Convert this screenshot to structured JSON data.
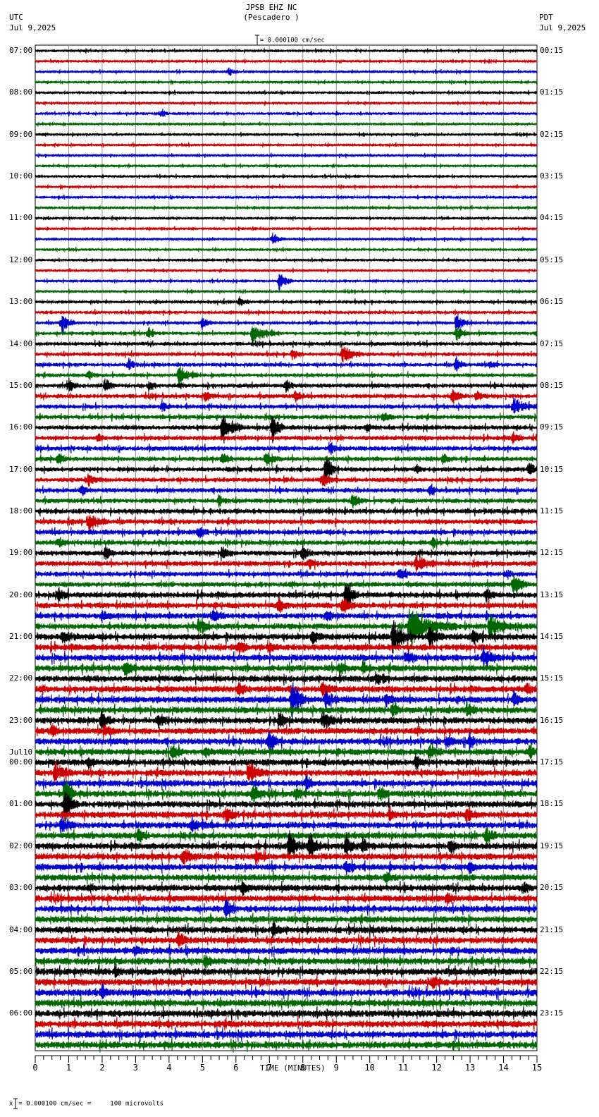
{
  "header": {
    "station": "JPSB EHZ NC",
    "location": "(Pescadero )",
    "scale_text": "= 0.000100 cm/sec",
    "left_tz": "UTC",
    "left_date": "Jul 9,2025",
    "right_tz": "PDT",
    "right_date": "Jul 9,2025"
  },
  "footer": {
    "scale_text": "= 0.000100 cm/sec =     100 microvolts",
    "scale_prefix": "x"
  },
  "chart_data": {
    "type": "line",
    "title": "JPSB EHZ NC (Pescadero )",
    "xlabel": "TIME (MINUTES)",
    "ylabel": "",
    "x_ticks": [
      "0",
      "1",
      "2",
      "3",
      "4",
      "5",
      "6",
      "7",
      "8",
      "9",
      "10",
      "11",
      "12",
      "13",
      "14",
      "15"
    ],
    "xlim": [
      0,
      15
    ],
    "grid": true,
    "traces_per_hour": 4,
    "trace_colors": [
      "#000000",
      "#cc0000",
      "#0000cc",
      "#006600"
    ],
    "left_labels": [
      {
        "row": 0,
        "text": "07:00"
      },
      {
        "row": 4,
        "text": "08:00"
      },
      {
        "row": 8,
        "text": "09:00"
      },
      {
        "row": 12,
        "text": "10:00"
      },
      {
        "row": 16,
        "text": "11:00"
      },
      {
        "row": 20,
        "text": "12:00"
      },
      {
        "row": 24,
        "text": "13:00"
      },
      {
        "row": 28,
        "text": "14:00"
      },
      {
        "row": 32,
        "text": "15:00"
      },
      {
        "row": 36,
        "text": "16:00"
      },
      {
        "row": 40,
        "text": "17:00"
      },
      {
        "row": 44,
        "text": "18:00"
      },
      {
        "row": 48,
        "text": "19:00"
      },
      {
        "row": 52,
        "text": "20:00"
      },
      {
        "row": 56,
        "text": "21:00"
      },
      {
        "row": 60,
        "text": "22:00"
      },
      {
        "row": 64,
        "text": "23:00"
      },
      {
        "row": 68,
        "text": "00:00",
        "date": "Jul10"
      },
      {
        "row": 72,
        "text": "01:00"
      },
      {
        "row": 76,
        "text": "02:00"
      },
      {
        "row": 80,
        "text": "03:00"
      },
      {
        "row": 84,
        "text": "04:00"
      },
      {
        "row": 88,
        "text": "05:00"
      },
      {
        "row": 92,
        "text": "06:00"
      }
    ],
    "right_labels": [
      {
        "row": 0,
        "text": "00:15"
      },
      {
        "row": 4,
        "text": "01:15"
      },
      {
        "row": 8,
        "text": "02:15"
      },
      {
        "row": 12,
        "text": "03:15"
      },
      {
        "row": 16,
        "text": "04:15"
      },
      {
        "row": 20,
        "text": "05:15"
      },
      {
        "row": 24,
        "text": "06:15"
      },
      {
        "row": 28,
        "text": "07:15"
      },
      {
        "row": 32,
        "text": "08:15"
      },
      {
        "row": 36,
        "text": "09:15"
      },
      {
        "row": 40,
        "text": "10:15"
      },
      {
        "row": 44,
        "text": "11:15"
      },
      {
        "row": 48,
        "text": "12:15"
      },
      {
        "row": 52,
        "text": "13:15"
      },
      {
        "row": 56,
        "text": "14:15"
      },
      {
        "row": 60,
        "text": "15:15"
      },
      {
        "row": 64,
        "text": "16:15"
      },
      {
        "row": 68,
        "text": "17:15"
      },
      {
        "row": 72,
        "text": "18:15"
      },
      {
        "row": 76,
        "text": "19:15"
      },
      {
        "row": 80,
        "text": "20:15"
      },
      {
        "row": 84,
        "text": "21:15"
      },
      {
        "row": 88,
        "text": "22:15"
      },
      {
        "row": 92,
        "text": "23:15"
      }
    ],
    "noise_level_by_hour": [
      1,
      1,
      1,
      1,
      1,
      1,
      1.3,
      1.5,
      1.7,
      1.8,
      1.8,
      2,
      2,
      2.3,
      2.6,
      2.6,
      2.6,
      2.6,
      2.6,
      2.6,
      2.6,
      2.7,
      2.8,
      2.8
    ],
    "events": [
      {
        "row": 2,
        "min": 5.8,
        "amp": 6,
        "dur": 0.3
      },
      {
        "row": 6,
        "min": 3.8,
        "amp": 6,
        "dur": 0.2
      },
      {
        "row": 18,
        "min": 7.1,
        "amp": 8,
        "dur": 0.4
      },
      {
        "row": 22,
        "min": 7.3,
        "amp": 14,
        "dur": 0.4
      },
      {
        "row": 24,
        "min": 6.1,
        "amp": 6,
        "dur": 0.3
      },
      {
        "row": 26,
        "min": 0.8,
        "amp": 12,
        "dur": 0.4
      },
      {
        "row": 26,
        "min": 5.0,
        "amp": 8,
        "dur": 0.3
      },
      {
        "row": 26,
        "min": 12.6,
        "amp": 14,
        "dur": 0.4
      },
      {
        "row": 27,
        "min": 3.4,
        "amp": 8,
        "dur": 0.3
      },
      {
        "row": 27,
        "min": 6.5,
        "amp": 14,
        "dur": 0.8
      },
      {
        "row": 27,
        "min": 12.6,
        "amp": 10,
        "dur": 0.4
      },
      {
        "row": 29,
        "min": 7.7,
        "amp": 8,
        "dur": 0.3
      },
      {
        "row": 29,
        "min": 9.2,
        "amp": 12,
        "dur": 0.6
      },
      {
        "row": 30,
        "min": 2.8,
        "amp": 8,
        "dur": 0.3
      },
      {
        "row": 30,
        "min": 12.6,
        "amp": 10,
        "dur": 0.3
      },
      {
        "row": 30,
        "min": 13.6,
        "amp": 6,
        "dur": 0.3
      },
      {
        "row": 31,
        "min": 1.6,
        "amp": 7,
        "dur": 0.3
      },
      {
        "row": 31,
        "min": 4.3,
        "amp": 12,
        "dur": 0.6
      },
      {
        "row": 32,
        "min": 1.0,
        "amp": 8,
        "dur": 0.3
      },
      {
        "row": 32,
        "min": 2.1,
        "amp": 9,
        "dur": 0.3
      },
      {
        "row": 32,
        "min": 3.4,
        "amp": 8,
        "dur": 0.3
      },
      {
        "row": 32,
        "min": 7.5,
        "amp": 9,
        "dur": 0.3
      },
      {
        "row": 33,
        "min": 5.1,
        "amp": 8,
        "dur": 0.3
      },
      {
        "row": 33,
        "min": 7.8,
        "amp": 8,
        "dur": 0.3
      },
      {
        "row": 33,
        "min": 12.5,
        "amp": 9,
        "dur": 0.4
      },
      {
        "row": 33,
        "min": 13.2,
        "amp": 8,
        "dur": 0.3
      },
      {
        "row": 34,
        "min": 3.8,
        "amp": 9,
        "dur": 0.3
      },
      {
        "row": 34,
        "min": 14.3,
        "amp": 10,
        "dur": 0.8
      },
      {
        "row": 35,
        "min": 10.4,
        "amp": 6,
        "dur": 0.4
      },
      {
        "row": 36,
        "min": 5.6,
        "amp": 22,
        "dur": 0.6
      },
      {
        "row": 36,
        "min": 7.1,
        "amp": 18,
        "dur": 0.4
      },
      {
        "row": 36,
        "min": 9.9,
        "amp": 6,
        "dur": 0.3
      },
      {
        "row": 37,
        "min": 1.9,
        "amp": 7,
        "dur": 0.2
      },
      {
        "row": 37,
        "min": 14.3,
        "amp": 7,
        "dur": 0.3
      },
      {
        "row": 38,
        "min": 8.8,
        "amp": 10,
        "dur": 0.3
      },
      {
        "row": 39,
        "min": 0.7,
        "amp": 7,
        "dur": 0.3
      },
      {
        "row": 39,
        "min": 5.6,
        "amp": 8,
        "dur": 0.3
      },
      {
        "row": 39,
        "min": 6.9,
        "amp": 10,
        "dur": 0.4
      },
      {
        "row": 39,
        "min": 12.2,
        "amp": 7,
        "dur": 0.3
      },
      {
        "row": 40,
        "min": 8.7,
        "amp": 18,
        "dur": 0.4
      },
      {
        "row": 40,
        "min": 11.4,
        "amp": 6,
        "dur": 0.2
      },
      {
        "row": 40,
        "min": 14.8,
        "amp": 12,
        "dur": 0.2
      },
      {
        "row": 41,
        "min": 1.6,
        "amp": 8,
        "dur": 0.4
      },
      {
        "row": 41,
        "min": 8.6,
        "amp": 10,
        "dur": 0.3
      },
      {
        "row": 42,
        "min": 1.4,
        "amp": 10,
        "dur": 0.2
      },
      {
        "row": 42,
        "min": 11.8,
        "amp": 6,
        "dur": 0.3
      },
      {
        "row": 43,
        "min": 5.5,
        "amp": 8,
        "dur": 0.3
      },
      {
        "row": 43,
        "min": 9.5,
        "amp": 9,
        "dur": 0.4
      },
      {
        "row": 45,
        "min": 1.6,
        "amp": 12,
        "dur": 0.6
      },
      {
        "row": 46,
        "min": 4.9,
        "amp": 8,
        "dur": 0.3
      },
      {
        "row": 47,
        "min": 0.7,
        "amp": 7,
        "dur": 0.3
      },
      {
        "row": 47,
        "min": 11.9,
        "amp": 7,
        "dur": 0.2
      },
      {
        "row": 48,
        "min": 2.1,
        "amp": 10,
        "dur": 0.3
      },
      {
        "row": 48,
        "min": 5.6,
        "amp": 8,
        "dur": 0.3
      },
      {
        "row": 48,
        "min": 8.0,
        "amp": 10,
        "dur": 0.3
      },
      {
        "row": 49,
        "min": 8.2,
        "amp": 6,
        "dur": 0.3
      },
      {
        "row": 49,
        "min": 11.4,
        "amp": 12,
        "dur": 0.6
      },
      {
        "row": 50,
        "min": 10.9,
        "amp": 8,
        "dur": 0.3
      },
      {
        "row": 50,
        "min": 14.1,
        "amp": 8,
        "dur": 0.2
      },
      {
        "row": 51,
        "min": 14.3,
        "amp": 16,
        "dur": 0.4
      },
      {
        "row": 52,
        "min": 0.7,
        "amp": 8,
        "dur": 0.3
      },
      {
        "row": 52,
        "min": 9.3,
        "amp": 18,
        "dur": 0.4
      },
      {
        "row": 52,
        "min": 13.5,
        "amp": 8,
        "dur": 0.3
      },
      {
        "row": 53,
        "min": 7.3,
        "amp": 10,
        "dur": 0.3
      },
      {
        "row": 53,
        "min": 9.2,
        "amp": 14,
        "dur": 0.4
      },
      {
        "row": 54,
        "min": 2.0,
        "amp": 8,
        "dur": 0.3
      },
      {
        "row": 54,
        "min": 5.3,
        "amp": 10,
        "dur": 0.4
      },
      {
        "row": 54,
        "min": 8.7,
        "amp": 8,
        "dur": 0.3
      },
      {
        "row": 55,
        "min": 4.9,
        "amp": 14,
        "dur": 0.4
      },
      {
        "row": 55,
        "min": 11.2,
        "amp": 24,
        "dur": 1.4
      },
      {
        "row": 55,
        "min": 13.6,
        "amp": 14,
        "dur": 0.8
      },
      {
        "row": 56,
        "min": 0.8,
        "amp": 8,
        "dur": 0.5
      },
      {
        "row": 56,
        "min": 8.3,
        "amp": 10,
        "dur": 0.3
      },
      {
        "row": 56,
        "min": 10.7,
        "amp": 22,
        "dur": 0.6
      },
      {
        "row": 56,
        "min": 11.8,
        "amp": 18,
        "dur": 0.4
      },
      {
        "row": 56,
        "min": 13.1,
        "amp": 10,
        "dur": 0.3
      },
      {
        "row": 57,
        "min": 6.1,
        "amp": 9,
        "dur": 0.3
      },
      {
        "row": 57,
        "min": 7.0,
        "amp": 7,
        "dur": 0.3
      },
      {
        "row": 58,
        "min": 11.1,
        "amp": 12,
        "dur": 0.3
      },
      {
        "row": 58,
        "min": 13.4,
        "amp": 12,
        "dur": 0.6
      },
      {
        "row": 59,
        "min": 2.7,
        "amp": 8,
        "dur": 0.4
      },
      {
        "row": 59,
        "min": 9.1,
        "amp": 10,
        "dur": 0.3
      },
      {
        "row": 59,
        "min": 9.8,
        "amp": 9,
        "dur": 0.3
      },
      {
        "row": 60,
        "min": 10.2,
        "amp": 10,
        "dur": 0.4
      },
      {
        "row": 61,
        "min": 6.1,
        "amp": 8,
        "dur": 0.3
      },
      {
        "row": 61,
        "min": 8.6,
        "amp": 12,
        "dur": 0.4
      },
      {
        "row": 61,
        "min": 14.7,
        "amp": 8,
        "dur": 0.3
      },
      {
        "row": 62,
        "min": 7.7,
        "amp": 26,
        "dur": 0.5
      },
      {
        "row": 62,
        "min": 8.7,
        "amp": 12,
        "dur": 0.4
      },
      {
        "row": 62,
        "min": 10.5,
        "amp": 8,
        "dur": 0.3
      },
      {
        "row": 62,
        "min": 14.3,
        "amp": 10,
        "dur": 0.3
      },
      {
        "row": 63,
        "min": 10.7,
        "amp": 8,
        "dur": 0.3
      },
      {
        "row": 63,
        "min": 12.9,
        "amp": 8,
        "dur": 0.3
      },
      {
        "row": 64,
        "min": 2.0,
        "amp": 16,
        "dur": 0.3
      },
      {
        "row": 64,
        "min": 3.7,
        "amp": 8,
        "dur": 0.4
      },
      {
        "row": 64,
        "min": 7.3,
        "amp": 10,
        "dur": 0.4
      },
      {
        "row": 64,
        "min": 8.6,
        "amp": 12,
        "dur": 0.6
      },
      {
        "row": 65,
        "min": 0.5,
        "amp": 8,
        "dur": 0.3
      },
      {
        "row": 65,
        "min": 2.1,
        "amp": 8,
        "dur": 0.3
      },
      {
        "row": 66,
        "min": 7.0,
        "amp": 12,
        "dur": 0.5
      },
      {
        "row": 66,
        "min": 12.3,
        "amp": 9,
        "dur": 0.3
      },
      {
        "row": 66,
        "min": 13.0,
        "amp": 10,
        "dur": 0.2
      },
      {
        "row": 67,
        "min": 4.1,
        "amp": 12,
        "dur": 0.3
      },
      {
        "row": 67,
        "min": 5.1,
        "amp": 8,
        "dur": 0.3
      },
      {
        "row": 67,
        "min": 11.8,
        "amp": 12,
        "dur": 0.4
      },
      {
        "row": 67,
        "min": 14.8,
        "amp": 10,
        "dur": 0.2
      },
      {
        "row": 68,
        "min": 1.6,
        "amp": 8,
        "dur": 0.3
      },
      {
        "row": 68,
        "min": 11.4,
        "amp": 8,
        "dur": 0.3
      },
      {
        "row": 69,
        "min": 0.6,
        "amp": 12,
        "dur": 0.5
      },
      {
        "row": 69,
        "min": 6.4,
        "amp": 14,
        "dur": 0.6
      },
      {
        "row": 70,
        "min": 8.1,
        "amp": 10,
        "dur": 0.3
      },
      {
        "row": 71,
        "min": 0.9,
        "amp": 30,
        "dur": 0.3
      },
      {
        "row": 71,
        "min": 6.5,
        "amp": 12,
        "dur": 0.4
      },
      {
        "row": 71,
        "min": 7.8,
        "amp": 10,
        "dur": 0.3
      },
      {
        "row": 71,
        "min": 10.3,
        "amp": 12,
        "dur": 0.3
      },
      {
        "row": 72,
        "min": 0.9,
        "amp": 20,
        "dur": 0.4
      },
      {
        "row": 73,
        "min": 5.7,
        "amp": 10,
        "dur": 0.4
      },
      {
        "row": 73,
        "min": 10.6,
        "amp": 8,
        "dur": 0.3
      },
      {
        "row": 73,
        "min": 12.9,
        "amp": 8,
        "dur": 0.3
      },
      {
        "row": 74,
        "min": 0.8,
        "amp": 12,
        "dur": 0.4
      },
      {
        "row": 74,
        "min": 4.7,
        "amp": 10,
        "dur": 0.4
      },
      {
        "row": 75,
        "min": 3.1,
        "amp": 9,
        "dur": 0.3
      },
      {
        "row": 75,
        "min": 13.5,
        "amp": 12,
        "dur": 0.3
      },
      {
        "row": 76,
        "min": 7.6,
        "amp": 20,
        "dur": 0.4
      },
      {
        "row": 76,
        "min": 8.2,
        "amp": 18,
        "dur": 0.4
      },
      {
        "row": 76,
        "min": 9.3,
        "amp": 12,
        "dur": 0.5
      },
      {
        "row": 76,
        "min": 9.8,
        "amp": 10,
        "dur": 0.4
      },
      {
        "row": 76,
        "min": 12.4,
        "amp": 8,
        "dur": 0.3
      },
      {
        "row": 77,
        "min": 4.4,
        "amp": 10,
        "dur": 0.6
      },
      {
        "row": 77,
        "min": 6.6,
        "amp": 10,
        "dur": 0.3
      },
      {
        "row": 78,
        "min": 9.3,
        "amp": 8,
        "dur": 0.3
      },
      {
        "row": 78,
        "min": 13.0,
        "amp": 8,
        "dur": 0.3
      },
      {
        "row": 79,
        "min": 10.5,
        "amp": 8,
        "dur": 0.3
      },
      {
        "row": 80,
        "min": 6.2,
        "amp": 10,
        "dur": 0.3
      },
      {
        "row": 80,
        "min": 14.6,
        "amp": 8,
        "dur": 0.3
      },
      {
        "row": 81,
        "min": 12.3,
        "amp": 10,
        "dur": 0.3
      },
      {
        "row": 82,
        "min": 5.7,
        "amp": 14,
        "dur": 0.3
      },
      {
        "row": 84,
        "min": 7.1,
        "amp": 9,
        "dur": 0.3
      },
      {
        "row": 85,
        "min": 4.3,
        "amp": 10,
        "dur": 0.3
      },
      {
        "row": 86,
        "min": 3.0,
        "amp": 7,
        "dur": 0.3
      },
      {
        "row": 87,
        "min": 5.1,
        "amp": 10,
        "dur": 0.3
      },
      {
        "row": 88,
        "min": 2.4,
        "amp": 7,
        "dur": 0.3
      },
      {
        "row": 89,
        "min": 11.9,
        "amp": 8,
        "dur": 0.3
      },
      {
        "row": 90,
        "min": 2.0,
        "amp": 10,
        "dur": 0.2
      }
    ]
  }
}
